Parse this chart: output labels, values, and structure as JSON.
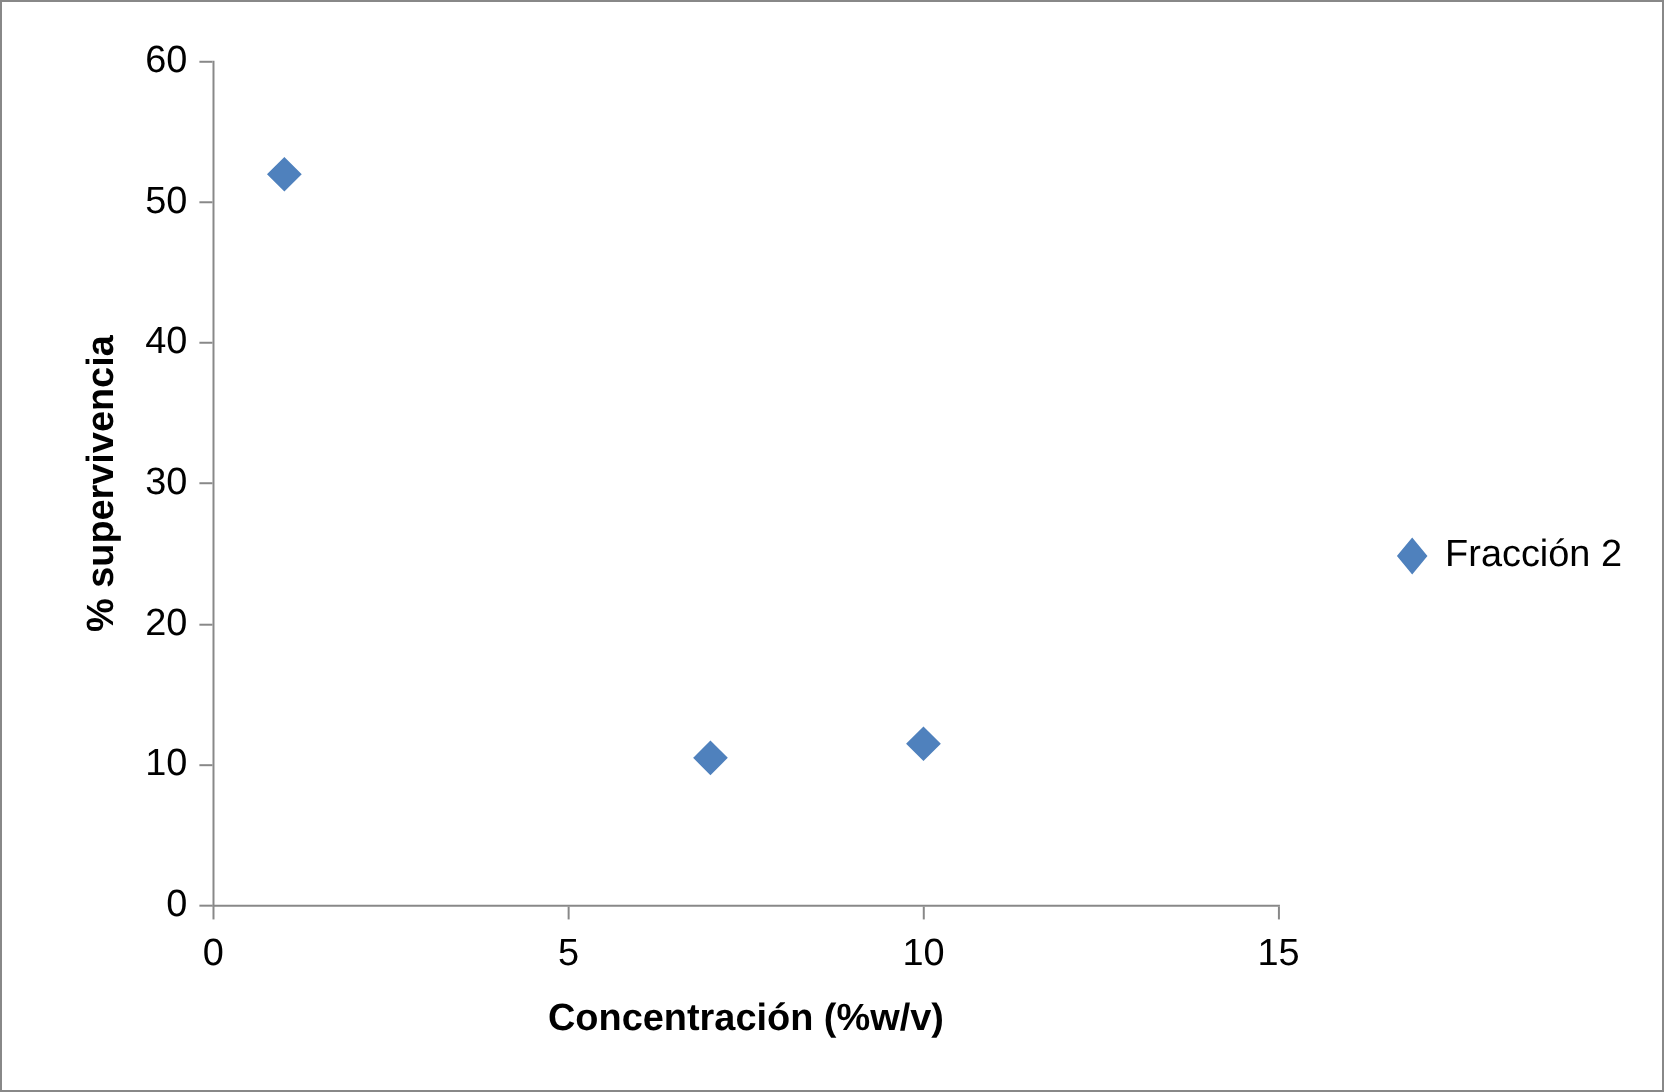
{
  "chart_data": {
    "type": "scatter",
    "xlabel": "Concentración (%w/v)",
    "ylabel": "% supervivencia",
    "x": [
      1,
      7,
      10
    ],
    "series": [
      {
        "name": "Fracción 2",
        "color": "#4f81bd",
        "values": [
          52,
          10.5,
          11.5
        ]
      }
    ],
    "xlim": [
      0,
      15
    ],
    "xticks": [
      0,
      5,
      10,
      15
    ],
    "ylim": [
      0,
      60
    ],
    "yticks": [
      0,
      10,
      20,
      30,
      40,
      50,
      60
    ],
    "grid": false,
    "legend": "right",
    "marker": "diamond"
  }
}
